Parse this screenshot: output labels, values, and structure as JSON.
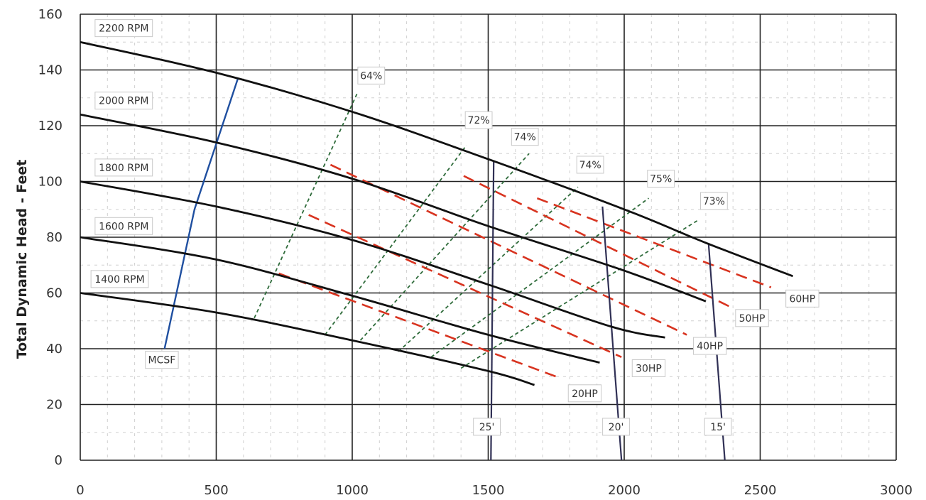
{
  "chart_data": {
    "type": "line",
    "title": "",
    "xlabel": "",
    "ylabel": "Total Dynamic Head - Feet",
    "xlim": [
      0,
      3000
    ],
    "ylim": [
      0,
      160
    ],
    "xticks": [
      0,
      500,
      1000,
      1500,
      2000,
      2500,
      3000
    ],
    "yticks": [
      0,
      20,
      40,
      60,
      80,
      100,
      120,
      140,
      160
    ],
    "grid": true,
    "legend": "none",
    "colors": {
      "rpm_curve": "#111111",
      "mcsf_line": "#1f4fa0",
      "efficiency_line": "#2e6b3a",
      "hp_line": "#d8331f",
      "npsh_line": "#303055",
      "grid_major": "#222222",
      "grid_minor": "#d0d0d0"
    },
    "rpm_curves": [
      {
        "name": "2200 RPM",
        "points": [
          [
            0,
            150
          ],
          [
            500,
            139
          ],
          [
            1000,
            125
          ],
          [
            1500,
            108
          ],
          [
            2000,
            90
          ],
          [
            2300,
            78
          ],
          [
            2620,
            66
          ]
        ]
      },
      {
        "name": "2000 RPM",
        "points": [
          [
            0,
            124
          ],
          [
            500,
            114
          ],
          [
            1000,
            101
          ],
          [
            1500,
            84
          ],
          [
            2000,
            68
          ],
          [
            2300,
            57
          ]
        ]
      },
      {
        "name": "1800 RPM",
        "points": [
          [
            0,
            100
          ],
          [
            500,
            91
          ],
          [
            1000,
            79
          ],
          [
            1500,
            63
          ],
          [
            1950,
            48
          ],
          [
            2150,
            44
          ]
        ]
      },
      {
        "name": "1600 RPM",
        "points": [
          [
            0,
            80
          ],
          [
            500,
            72
          ],
          [
            1000,
            59
          ],
          [
            1500,
            45
          ],
          [
            1910,
            35
          ]
        ]
      },
      {
        "name": "1400 RPM",
        "points": [
          [
            0,
            60
          ],
          [
            500,
            53
          ],
          [
            1000,
            43
          ],
          [
            1500,
            32
          ],
          [
            1670,
            27
          ]
        ]
      }
    ],
    "mcsf_line": {
      "name": "MCSF",
      "points": [
        [
          310,
          40
        ],
        [
          420,
          90
        ],
        [
          580,
          137
        ]
      ]
    },
    "efficiency_lines": [
      {
        "name": "64%",
        "points": [
          [
            640,
            51
          ],
          [
            1020,
            132
          ]
        ]
      },
      {
        "name": "72%",
        "points": [
          [
            900,
            45
          ],
          [
            1420,
            113
          ]
        ]
      },
      {
        "name": "74%",
        "points": [
          [
            1030,
            43
          ],
          [
            1650,
            110
          ]
        ]
      },
      {
        "name": "74%",
        "points": [
          [
            1170,
            39
          ],
          [
            1830,
            98
          ]
        ]
      },
      {
        "name": "75%",
        "points": [
          [
            1290,
            37
          ],
          [
            2090,
            94
          ]
        ]
      },
      {
        "name": "73%",
        "points": [
          [
            1400,
            33
          ],
          [
            2270,
            86
          ]
        ]
      }
    ],
    "hp_lines": [
      {
        "name": "20HP",
        "points": [
          [
            730,
            67
          ],
          [
            1750,
            30
          ]
        ]
      },
      {
        "name": "30HP",
        "points": [
          [
            840,
            88
          ],
          [
            1990,
            37
          ]
        ]
      },
      {
        "name": "40HP",
        "points": [
          [
            920,
            106
          ],
          [
            2230,
            45
          ]
        ]
      },
      {
        "name": "50HP",
        "points": [
          [
            1410,
            102
          ],
          [
            2390,
            55
          ]
        ]
      },
      {
        "name": "60HP",
        "points": [
          [
            1680,
            94
          ],
          [
            2540,
            62
          ]
        ]
      }
    ],
    "npsh_lines": [
      {
        "name": "25'",
        "points": [
          [
            1510,
            0
          ],
          [
            1520,
            107
          ]
        ]
      },
      {
        "name": "20'",
        "points": [
          [
            1990,
            0
          ],
          [
            1920,
            91
          ]
        ]
      },
      {
        "name": "15'",
        "points": [
          [
            2370,
            0
          ],
          [
            2310,
            78
          ]
        ]
      }
    ],
    "labels": {
      "rpm": [
        {
          "text": "2200 RPM",
          "x": 160,
          "y": 155
        },
        {
          "text": "2000 RPM",
          "x": 160,
          "y": 129
        },
        {
          "text": "1800 RPM",
          "x": 160,
          "y": 105
        },
        {
          "text": "1600 RPM",
          "x": 160,
          "y": 84
        },
        {
          "text": "1400 RPM",
          "x": 145,
          "y": 65
        }
      ],
      "mcsf": {
        "text": "MCSF",
        "x": 300,
        "y": 36
      },
      "efficiency": [
        {
          "text": "64%",
          "x": 1070,
          "y": 138
        },
        {
          "text": "72%",
          "x": 1465,
          "y": 122
        },
        {
          "text": "74%",
          "x": 1635,
          "y": 116
        },
        {
          "text": "74%",
          "x": 1875,
          "y": 106
        },
        {
          "text": "75%",
          "x": 2135,
          "y": 101
        },
        {
          "text": "73%",
          "x": 2330,
          "y": 93
        }
      ],
      "hp": [
        {
          "text": "20HP",
          "x": 1855,
          "y": 24
        },
        {
          "text": "30HP",
          "x": 2090,
          "y": 33
        },
        {
          "text": "40HP",
          "x": 2315,
          "y": 41
        },
        {
          "text": "50HP",
          "x": 2470,
          "y": 51
        },
        {
          "text": "60HP",
          "x": 2655,
          "y": 58
        }
      ],
      "npsh": [
        {
          "text": "25'",
          "x": 1495,
          "y": 12
        },
        {
          "text": "20'",
          "x": 1970,
          "y": 12
        },
        {
          "text": "15'",
          "x": 2345,
          "y": 12
        }
      ]
    }
  }
}
